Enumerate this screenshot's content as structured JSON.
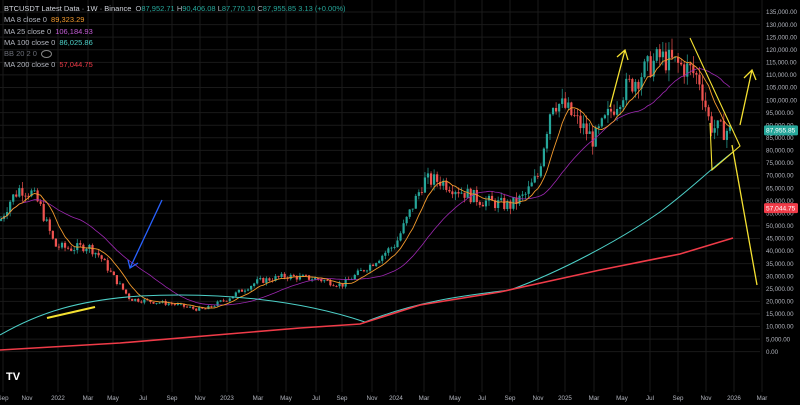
{
  "header": {
    "symbol": "BTCUSDT Latest Data · 1W · Binance",
    "ohlc": {
      "o_label": "O",
      "o": "87,952.71",
      "h_label": "H",
      "h": "90,406.08",
      "l_label": "L",
      "l": "87,770.10",
      "c_label": "C",
      "c": "87,955.85",
      "change": "3.13 (+0.00%)"
    }
  },
  "indicators": [
    {
      "label": "MA 8 close 0",
      "value": "89,323.29",
      "color": "#f39a2d"
    },
    {
      "label": "MA 25 close 0",
      "value": "106,184.93",
      "color": "#9c27b0"
    },
    {
      "label": "MA 100 close 0",
      "value": "86,025.86",
      "color": "#4dd0c8"
    },
    {
      "label": "BB 20 2 0",
      "value": "",
      "color": "#6b6e78"
    },
    {
      "label": "MA 200 close 0",
      "value": "57,044.75",
      "color": "#ef3b48"
    }
  ],
  "price_axis": {
    "ticks": [
      "135,000.00",
      "130,000.00",
      "125,000.00",
      "120,000.00",
      "115,000.00",
      "110,000.00",
      "105,000.00",
      "100,000.00",
      "95,000.00",
      "90,000.00",
      "85,000.00",
      "80,000.00",
      "75,000.00",
      "70,000.00",
      "65,000.00",
      "60,000.00",
      "55,000.00",
      "50,000.00",
      "45,000.00",
      "40,000.00",
      "35,000.00",
      "30,000.00",
      "25,000.00",
      "20,000.00",
      "15,000.00",
      "10,000.00",
      "5,000.00",
      "0.00"
    ],
    "last_price": "87,955.85",
    "ma200_tag": "57,044.75"
  },
  "time_axis": {
    "ticks": [
      "Sep",
      "Nov",
      "2022",
      "Mar",
      "May",
      "Jul",
      "Sep",
      "Nov",
      "2023",
      "Mar",
      "May",
      "Jul",
      "Sep",
      "Nov",
      "2024",
      "Mar",
      "May",
      "Jul",
      "Sep",
      "Nov",
      "2025",
      "Mar",
      "May",
      "Jul",
      "Sep",
      "Nov",
      "2026",
      "Mar"
    ]
  },
  "colors": {
    "up": "#26a69a",
    "down": "#ef5350",
    "ma8": "#f39a2d",
    "ma25": "#9c27b0",
    "ma100": "#4dd0c8",
    "ma200": "#ef3b48",
    "grid": "#1a1a1a",
    "drawing_yellow": "#f5e131",
    "drawing_blue": "#2962ff"
  },
  "logo": "TV"
}
